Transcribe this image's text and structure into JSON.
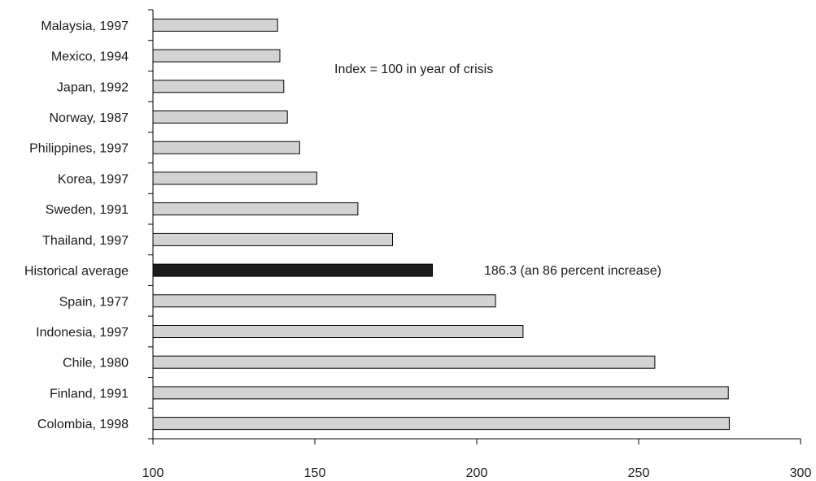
{
  "chart_data": {
    "type": "bar",
    "orientation": "horizontal",
    "categories": [
      "Malaysia, 1997",
      "Mexico, 1994",
      "Japan, 1992",
      "Norway, 1987",
      "Philippines, 1997",
      "Korea, 1997",
      "Sweden, 1991",
      "Thailand, 1997",
      "Historical average",
      "Spain, 1977",
      "Indonesia, 1997",
      "Chile, 1980",
      "Finland, 1991",
      "Colombia, 1998"
    ],
    "values": [
      138.5,
      139.2,
      140.4,
      141.5,
      145.3,
      150.6,
      163.3,
      174.0,
      186.3,
      205.8,
      214.3,
      255.0,
      277.7,
      278.0
    ],
    "highlight_category": "Historical average",
    "colors": {
      "bar_fill": "#d3d3d3",
      "highlight_fill": "#1c1c1c",
      "bar_stroke": "#000000",
      "axis": "#000000"
    },
    "xlim": [
      100,
      300
    ],
    "xticks": [
      100,
      150,
      200,
      250,
      300
    ],
    "annotations": [
      {
        "text": "Index = 100 in year of crisis"
      },
      {
        "text": "186.3 (an 86 percent increase)"
      }
    ],
    "grid": false,
    "legend": "none"
  }
}
